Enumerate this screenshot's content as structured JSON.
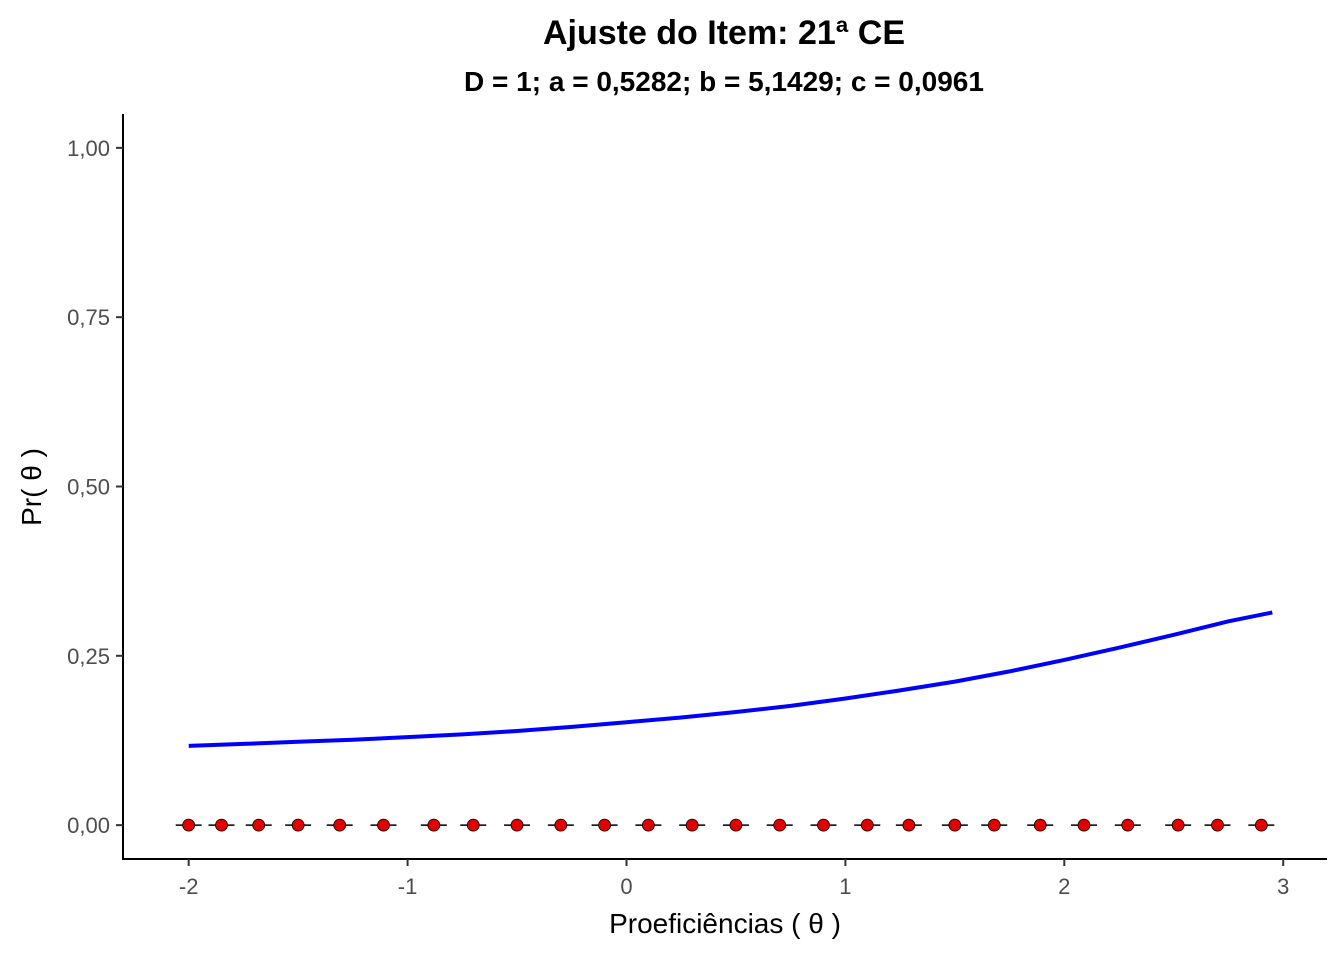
{
  "chart_data": {
    "type": "line",
    "title": "Ajuste do Item: 21ª CE",
    "subtitle": "D = 1; a = 0,5282; b = 5,1429; c = 0,0961",
    "xlabel": "Proeficiências ( θ )",
    "ylabel": "Pr( θ )",
    "xlim": [
      -2.3,
      3.2
    ],
    "ylim": [
      -0.05,
      1.05
    ],
    "x_ticks": [
      -2,
      -1,
      0,
      1,
      2,
      3
    ],
    "x_tick_labels": [
      "-2",
      "-1",
      "0",
      "1",
      "2",
      "3"
    ],
    "y_ticks": [
      0,
      0.25,
      0.5,
      0.75,
      1
    ],
    "y_tick_labels": [
      "0,00",
      "0,25",
      "0,50",
      "0,75",
      "1,00"
    ],
    "grid": false,
    "series": [
      {
        "kind": "curve",
        "color": "#0000ff",
        "x": [
          -2.0,
          -1.75,
          -1.5,
          -1.25,
          -1.0,
          -0.75,
          -0.5,
          -0.25,
          0.0,
          0.25,
          0.5,
          0.75,
          1.0,
          1.25,
          1.5,
          1.75,
          2.0,
          2.25,
          2.5,
          2.75,
          2.95
        ],
        "y": [
          0.117,
          0.12,
          0.123,
          0.126,
          0.13,
          0.134,
          0.139,
          0.145,
          0.152,
          0.159,
          0.167,
          0.176,
          0.187,
          0.199,
          0.212,
          0.227,
          0.244,
          0.262,
          0.281,
          0.301,
          0.314
        ]
      },
      {
        "kind": "points",
        "color": "#e00000",
        "x": [
          -2.0,
          -1.85,
          -1.68,
          -1.5,
          -1.31,
          -1.11,
          -0.88,
          -0.7,
          -0.5,
          -0.3,
          -0.1,
          0.1,
          0.3,
          0.5,
          0.7,
          0.9,
          1.1,
          1.29,
          1.5,
          1.68,
          1.89,
          2.09,
          2.29,
          2.52,
          2.7,
          2.9
        ],
        "y": [
          0,
          0,
          0,
          0,
          0,
          0,
          0,
          0,
          0,
          0,
          0,
          0,
          0,
          0,
          0,
          0,
          0,
          0,
          0,
          0,
          0,
          0,
          0,
          0,
          0,
          0
        ]
      }
    ]
  }
}
